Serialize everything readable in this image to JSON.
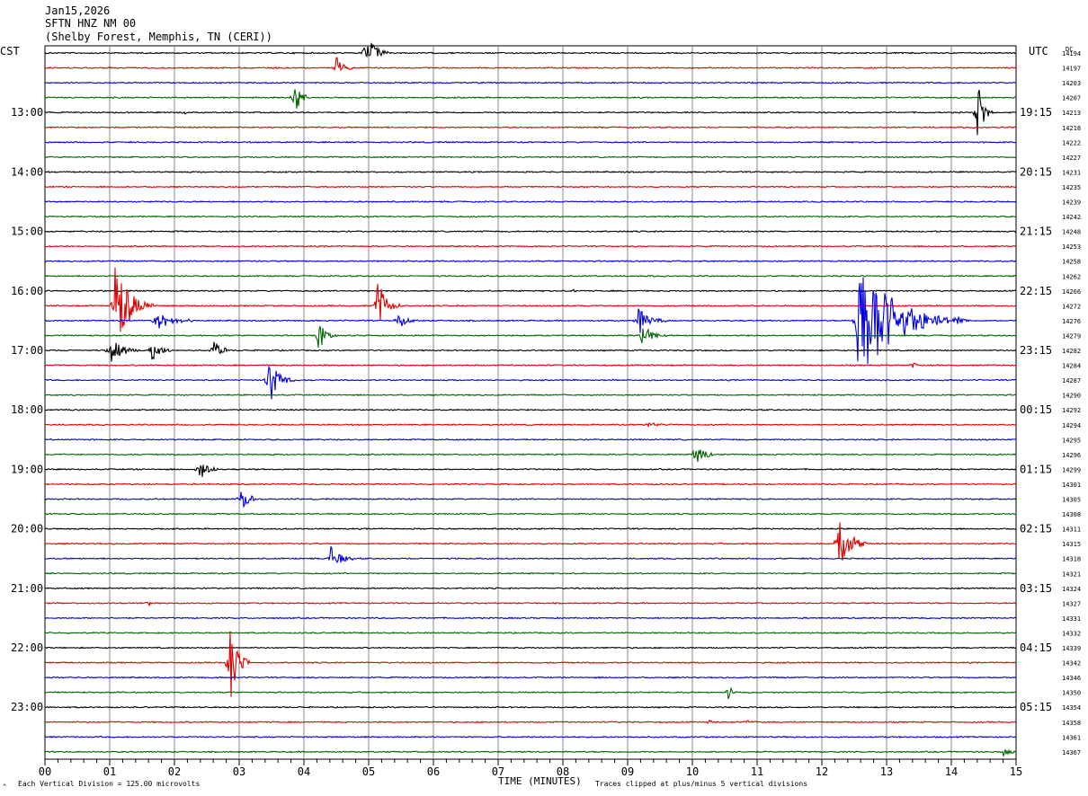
{
  "header": {
    "date": "Jan15,2026",
    "station": "SFTN HNZ NM 00",
    "location": "(Shelby Forest, Memphis, TN (CERI))"
  },
  "left_axis_label": "CST",
  "right_axis_label": "UTC",
  "dc_label": "DC",
  "footer": {
    "scale_note": "Each Vertical Division =  125.00 microvolts",
    "xlabel": "TIME (MINUTES)",
    "clip_note": "Traces clipped at plus/minus 5 vertical divisions",
    "corner_mark": "^"
  },
  "colors": {
    "cycle": [
      "#000000",
      "#e00000",
      "#0000e0",
      "#006400"
    ],
    "grid": "#8a8a8a"
  },
  "chart_data": {
    "type": "line",
    "xlabel": "TIME (MINUTES)",
    "xlim": [
      0,
      15
    ],
    "x_ticks": [
      "00",
      "01",
      "02",
      "03",
      "04",
      "05",
      "06",
      "07",
      "08",
      "09",
      "10",
      "11",
      "12",
      "13",
      "14",
      "15"
    ],
    "left_hour_labels": [
      "13:00",
      "14:00",
      "15:00",
      "16:00",
      "17:00",
      "18:00",
      "19:00",
      "20:00",
      "21:00",
      "22:00",
      "23:00"
    ],
    "right_hour_labels": [
      "19:15",
      "20:15",
      "21:15",
      "22:15",
      "23:15",
      "00:15",
      "01:15",
      "02:15",
      "03:15",
      "04:15",
      "05:15"
    ],
    "trace_count": 48,
    "dc_offsets": [
      "14194",
      "14197",
      "14203",
      "14207",
      "14213",
      "14218",
      "14222",
      "14227",
      "14231",
      "14235",
      "14239",
      "14242",
      "14248",
      "14253",
      "14258",
      "14262",
      "14266",
      "14272",
      "14276",
      "14279",
      "14282",
      "14284",
      "14287",
      "14290",
      "14292",
      "14294",
      "14295",
      "14296",
      "14299",
      "14301",
      "14305",
      "14308",
      "14311",
      "14315",
      "14318",
      "14321",
      "14324",
      "14327",
      "14331",
      "14332",
      "14339",
      "14342",
      "14346",
      "14350",
      "14354",
      "14358",
      "14361",
      "14367"
    ],
    "events": [
      {
        "trace": 0,
        "minute": 4.95,
        "amp": 1.6,
        "dur": 0.35
      },
      {
        "trace": 1,
        "minute": 4.5,
        "amp": 0.8,
        "dur": 0.3
      },
      {
        "trace": 3,
        "minute": 3.85,
        "amp": 1.2,
        "dur": 0.3
      },
      {
        "trace": 4,
        "minute": 14.4,
        "amp": 2.2,
        "dur": 0.25
      },
      {
        "trace": 4,
        "minute": 2.15,
        "amp": 0.4,
        "dur": 0.05
      },
      {
        "trace": 16,
        "minute": 8.15,
        "amp": 0.2,
        "dur": 0.1
      },
      {
        "trace": 17,
        "minute": 1.08,
        "amp": 3.2,
        "dur": 0.6
      },
      {
        "trace": 17,
        "minute": 5.12,
        "amp": 2.0,
        "dur": 0.4
      },
      {
        "trace": 18,
        "minute": 1.7,
        "amp": 0.7,
        "dur": 0.7
      },
      {
        "trace": 18,
        "minute": 5.45,
        "amp": 0.6,
        "dur": 0.35
      },
      {
        "trace": 18,
        "minute": 9.15,
        "amp": 1.1,
        "dur": 0.45
      },
      {
        "trace": 18,
        "minute": 12.55,
        "amp": 5.0,
        "dur": 1.4
      },
      {
        "trace": 18,
        "minute": 14.05,
        "amp": 0.6,
        "dur": 0.25
      },
      {
        "trace": 19,
        "minute": 4.22,
        "amp": 1.1,
        "dur": 0.3
      },
      {
        "trace": 19,
        "minute": 9.2,
        "amp": 0.9,
        "dur": 0.4
      },
      {
        "trace": 20,
        "minute": 1.0,
        "amp": 1.2,
        "dur": 0.45
      },
      {
        "trace": 20,
        "minute": 1.65,
        "amp": 0.8,
        "dur": 0.35
      },
      {
        "trace": 20,
        "minute": 2.6,
        "amp": 0.8,
        "dur": 0.3
      },
      {
        "trace": 21,
        "minute": 13.4,
        "amp": 0.25,
        "dur": 0.15
      },
      {
        "trace": 22,
        "minute": 3.45,
        "amp": 2.0,
        "dur": 0.4
      },
      {
        "trace": 25,
        "minute": 9.3,
        "amp": 0.2,
        "dur": 0.5
      },
      {
        "trace": 27,
        "minute": 10.05,
        "amp": 1.0,
        "dur": 0.3
      },
      {
        "trace": 28,
        "minute": 2.38,
        "amp": 0.9,
        "dur": 0.35
      },
      {
        "trace": 30,
        "minute": 3.02,
        "amp": 0.9,
        "dur": 0.35
      },
      {
        "trace": 33,
        "minute": 12.25,
        "amp": 2.3,
        "dur": 0.45
      },
      {
        "trace": 34,
        "minute": 4.4,
        "amp": 0.9,
        "dur": 0.4
      },
      {
        "trace": 37,
        "minute": 1.6,
        "amp": 0.3,
        "dur": 0.1
      },
      {
        "trace": 41,
        "minute": 2.85,
        "amp": 3.0,
        "dur": 0.35
      },
      {
        "trace": 43,
        "minute": 10.55,
        "amp": 0.5,
        "dur": 0.2
      },
      {
        "trace": 45,
        "minute": 10.25,
        "amp": 0.3,
        "dur": 0.1
      },
      {
        "trace": 45,
        "minute": 10.85,
        "amp": 0.3,
        "dur": 0.1
      },
      {
        "trace": 47,
        "minute": 14.8,
        "amp": 0.3,
        "dur": 0.4
      }
    ]
  }
}
